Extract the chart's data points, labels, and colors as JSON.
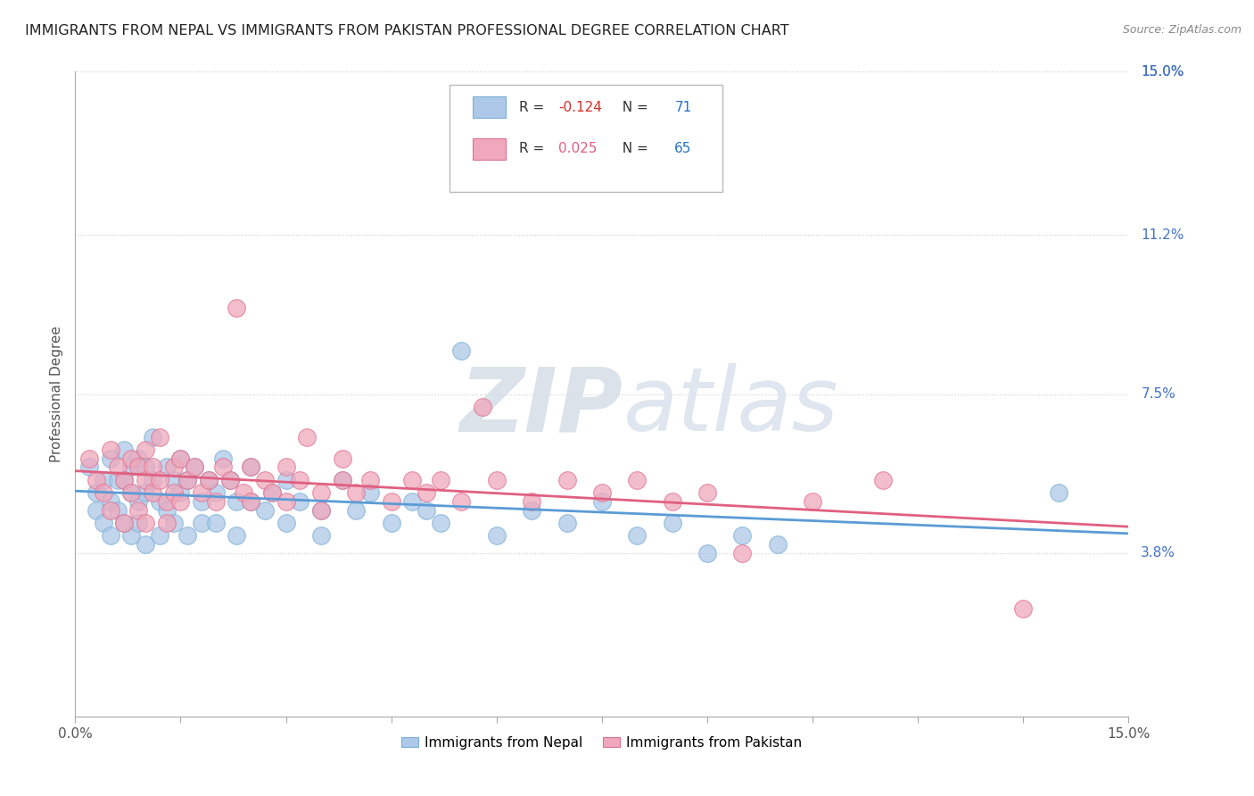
{
  "title": "IMMIGRANTS FROM NEPAL VS IMMIGRANTS FROM PAKISTAN PROFESSIONAL DEGREE CORRELATION CHART",
  "source": "Source: ZipAtlas.com",
  "ylabel": "Professional Degree",
  "xmin": 0.0,
  "xmax": 15.0,
  "ymin": 0.0,
  "ymax": 15.0,
  "ytick_vals": [
    3.8,
    7.5,
    11.2,
    15.0
  ],
  "ytick_labels": [
    "3.8%",
    "7.5%",
    "11.2%",
    "15.0%"
  ],
  "nepal_color": "#adc8e8",
  "nepal_edge": "#7aafd4",
  "pakistan_color": "#f0a8bc",
  "pakistan_edge": "#e07090",
  "nepal_line_color": "#5b9bd5",
  "pakistan_line_color": "#e06080",
  "nepal_R": -0.124,
  "nepal_N": 71,
  "pakistan_R": 0.025,
  "pakistan_N": 65,
  "nepal_data": [
    [
      0.2,
      5.8
    ],
    [
      0.3,
      5.2
    ],
    [
      0.3,
      4.8
    ],
    [
      0.4,
      5.5
    ],
    [
      0.4,
      4.5
    ],
    [
      0.5,
      6.0
    ],
    [
      0.5,
      5.0
    ],
    [
      0.5,
      4.2
    ],
    [
      0.6,
      5.5
    ],
    [
      0.6,
      4.8
    ],
    [
      0.7,
      6.2
    ],
    [
      0.7,
      5.5
    ],
    [
      0.7,
      4.5
    ],
    [
      0.8,
      5.8
    ],
    [
      0.8,
      5.2
    ],
    [
      0.8,
      4.2
    ],
    [
      0.9,
      6.0
    ],
    [
      0.9,
      5.0
    ],
    [
      0.9,
      4.5
    ],
    [
      1.0,
      5.8
    ],
    [
      1.0,
      5.2
    ],
    [
      1.0,
      4.0
    ],
    [
      1.1,
      6.5
    ],
    [
      1.1,
      5.5
    ],
    [
      1.2,
      5.0
    ],
    [
      1.2,
      4.2
    ],
    [
      1.3,
      5.8
    ],
    [
      1.3,
      4.8
    ],
    [
      1.4,
      5.5
    ],
    [
      1.4,
      4.5
    ],
    [
      1.5,
      6.0
    ],
    [
      1.5,
      5.2
    ],
    [
      1.6,
      5.5
    ],
    [
      1.6,
      4.2
    ],
    [
      1.7,
      5.8
    ],
    [
      1.8,
      5.0
    ],
    [
      1.8,
      4.5
    ],
    [
      1.9,
      5.5
    ],
    [
      2.0,
      5.2
    ],
    [
      2.0,
      4.5
    ],
    [
      2.1,
      6.0
    ],
    [
      2.2,
      5.5
    ],
    [
      2.3,
      5.0
    ],
    [
      2.3,
      4.2
    ],
    [
      2.5,
      5.8
    ],
    [
      2.5,
      5.0
    ],
    [
      2.7,
      4.8
    ],
    [
      2.8,
      5.2
    ],
    [
      3.0,
      5.5
    ],
    [
      3.0,
      4.5
    ],
    [
      3.2,
      5.0
    ],
    [
      3.5,
      4.8
    ],
    [
      3.5,
      4.2
    ],
    [
      3.8,
      5.5
    ],
    [
      4.0,
      4.8
    ],
    [
      4.2,
      5.2
    ],
    [
      4.5,
      4.5
    ],
    [
      4.8,
      5.0
    ],
    [
      5.0,
      4.8
    ],
    [
      5.2,
      4.5
    ],
    [
      5.5,
      8.5
    ],
    [
      6.0,
      4.2
    ],
    [
      6.5,
      4.8
    ],
    [
      7.0,
      4.5
    ],
    [
      7.5,
      5.0
    ],
    [
      8.0,
      4.2
    ],
    [
      8.5,
      4.5
    ],
    [
      9.0,
      3.8
    ],
    [
      9.5,
      4.2
    ],
    [
      10.0,
      4.0
    ],
    [
      14.0,
      5.2
    ]
  ],
  "pakistan_data": [
    [
      0.2,
      6.0
    ],
    [
      0.3,
      5.5
    ],
    [
      0.4,
      5.2
    ],
    [
      0.5,
      6.2
    ],
    [
      0.5,
      4.8
    ],
    [
      0.6,
      5.8
    ],
    [
      0.7,
      5.5
    ],
    [
      0.7,
      4.5
    ],
    [
      0.8,
      6.0
    ],
    [
      0.8,
      5.2
    ],
    [
      0.9,
      5.8
    ],
    [
      0.9,
      4.8
    ],
    [
      1.0,
      6.2
    ],
    [
      1.0,
      5.5
    ],
    [
      1.0,
      4.5
    ],
    [
      1.1,
      5.8
    ],
    [
      1.1,
      5.2
    ],
    [
      1.2,
      6.5
    ],
    [
      1.2,
      5.5
    ],
    [
      1.3,
      5.0
    ],
    [
      1.3,
      4.5
    ],
    [
      1.4,
      5.8
    ],
    [
      1.4,
      5.2
    ],
    [
      1.5,
      6.0
    ],
    [
      1.5,
      5.0
    ],
    [
      1.6,
      5.5
    ],
    [
      1.7,
      5.8
    ],
    [
      1.8,
      5.2
    ],
    [
      1.9,
      5.5
    ],
    [
      2.0,
      5.0
    ],
    [
      2.1,
      5.8
    ],
    [
      2.2,
      5.5
    ],
    [
      2.3,
      9.5
    ],
    [
      2.4,
      5.2
    ],
    [
      2.5,
      5.8
    ],
    [
      2.5,
      5.0
    ],
    [
      2.7,
      5.5
    ],
    [
      2.8,
      5.2
    ],
    [
      3.0,
      5.8
    ],
    [
      3.0,
      5.0
    ],
    [
      3.2,
      5.5
    ],
    [
      3.3,
      6.5
    ],
    [
      3.5,
      5.2
    ],
    [
      3.5,
      4.8
    ],
    [
      3.8,
      6.0
    ],
    [
      3.8,
      5.5
    ],
    [
      4.0,
      5.2
    ],
    [
      4.2,
      5.5
    ],
    [
      4.5,
      5.0
    ],
    [
      4.8,
      5.5
    ],
    [
      5.0,
      5.2
    ],
    [
      5.2,
      5.5
    ],
    [
      5.5,
      5.0
    ],
    [
      5.8,
      7.2
    ],
    [
      6.0,
      5.5
    ],
    [
      6.5,
      5.0
    ],
    [
      7.0,
      5.5
    ],
    [
      7.5,
      5.2
    ],
    [
      8.0,
      5.5
    ],
    [
      8.5,
      5.0
    ],
    [
      9.0,
      5.2
    ],
    [
      9.5,
      3.8
    ],
    [
      10.5,
      5.0
    ],
    [
      11.5,
      5.5
    ],
    [
      13.5,
      2.5
    ]
  ],
  "watermark_line1": "ZIP",
  "watermark_line2": "atlas"
}
